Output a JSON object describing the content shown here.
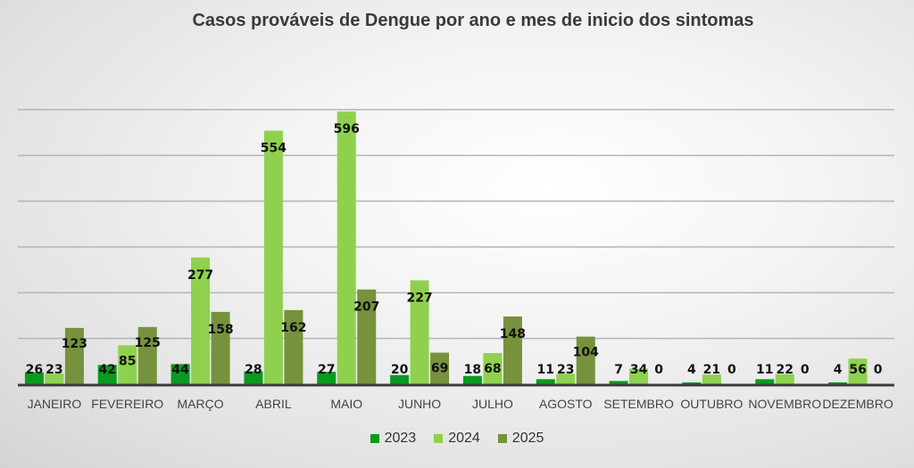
{
  "chart_data": {
    "type": "bar",
    "title": "Casos prováveis de Dengue por ano e mes de inicio dos sintomas",
    "xlabel": "",
    "ylabel": "",
    "ylim": [
      0,
      600
    ],
    "grid": true,
    "gridlines": [
      100,
      200,
      300,
      400,
      500,
      600
    ],
    "legend_position": "bottom",
    "categories": [
      "JANEIRO",
      "FEVEREIRO",
      "MARÇO",
      "ABRIL",
      "MAIO",
      "JUNHO",
      "JULHO",
      "AGOSTO",
      "SETEMBRO",
      "OUTUBRO",
      "NOVEMBRO",
      "DEZEMBRO"
    ],
    "series": [
      {
        "name": "2023",
        "color": "#0a9a1f",
        "values": [
          26,
          42,
          44,
          28,
          27,
          20,
          18,
          11,
          7,
          4,
          11,
          4
        ]
      },
      {
        "name": "2024",
        "color": "#8fd14f",
        "values": [
          23,
          85,
          277,
          554,
          596,
          227,
          68,
          23,
          34,
          21,
          22,
          56
        ]
      },
      {
        "name": "2025",
        "color": "#76923c",
        "values": [
          123,
          125,
          158,
          162,
          207,
          69,
          148,
          104,
          0,
          0,
          0,
          0
        ]
      }
    ]
  }
}
